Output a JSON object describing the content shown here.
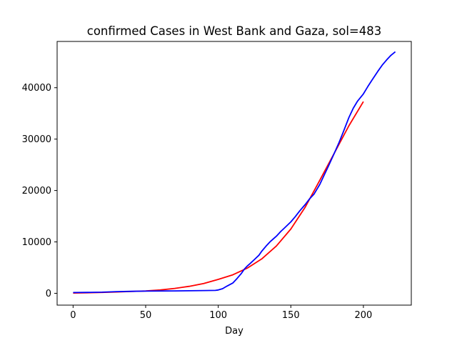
{
  "chart_data": {
    "type": "line",
    "title": "confirmed Cases in West Bank and Gaza, sol=483",
    "xlabel": "Day",
    "ylabel": "",
    "xlim": [
      -11,
      233
    ],
    "ylim": [
      -2300,
      49000
    ],
    "grid": false,
    "legend": "none",
    "x_ticks": [
      0,
      50,
      100,
      150,
      200
    ],
    "y_ticks": [
      0,
      10000,
      20000,
      30000,
      40000
    ],
    "series": [
      {
        "color": "#ff0000",
        "x": [
          0,
          10,
          20,
          30,
          40,
          50,
          60,
          70,
          80,
          90,
          100,
          110,
          120,
          130,
          140,
          150,
          160,
          170,
          180,
          190,
          200
        ],
        "y": [
          50,
          100,
          180,
          260,
          350,
          450,
          650,
          950,
          1350,
          1900,
          2700,
          3600,
          4900,
          6700,
          9200,
          12500,
          16800,
          22000,
          27300,
          32600,
          37300
        ]
      },
      {
        "color": "#0000ff",
        "x": [
          0,
          10,
          20,
          25,
          30,
          40,
          50,
          60,
          70,
          80,
          90,
          98,
          100,
          103,
          106,
          110,
          113,
          116,
          118,
          120,
          122,
          125,
          128,
          130,
          133,
          136,
          140,
          143,
          146,
          150,
          153,
          156,
          160,
          163,
          166,
          170,
          173,
          176,
          180,
          183,
          186,
          190,
          193,
          196,
          200,
          203,
          206,
          210,
          213,
          216,
          219,
          222
        ],
        "y": [
          150,
          180,
          220,
          270,
          330,
          380,
          430,
          450,
          470,
          500,
          530,
          560,
          650,
          900,
          1400,
          2000,
          2900,
          3900,
          4700,
          5300,
          5800,
          6600,
          7400,
          8200,
          9200,
          10100,
          11100,
          12000,
          12800,
          13900,
          14900,
          16000,
          17300,
          18400,
          19300,
          21200,
          23000,
          24800,
          27300,
          29200,
          31300,
          34200,
          36000,
          37400,
          38800,
          40200,
          41500,
          43200,
          44400,
          45400,
          46300,
          47000
        ]
      }
    ]
  }
}
